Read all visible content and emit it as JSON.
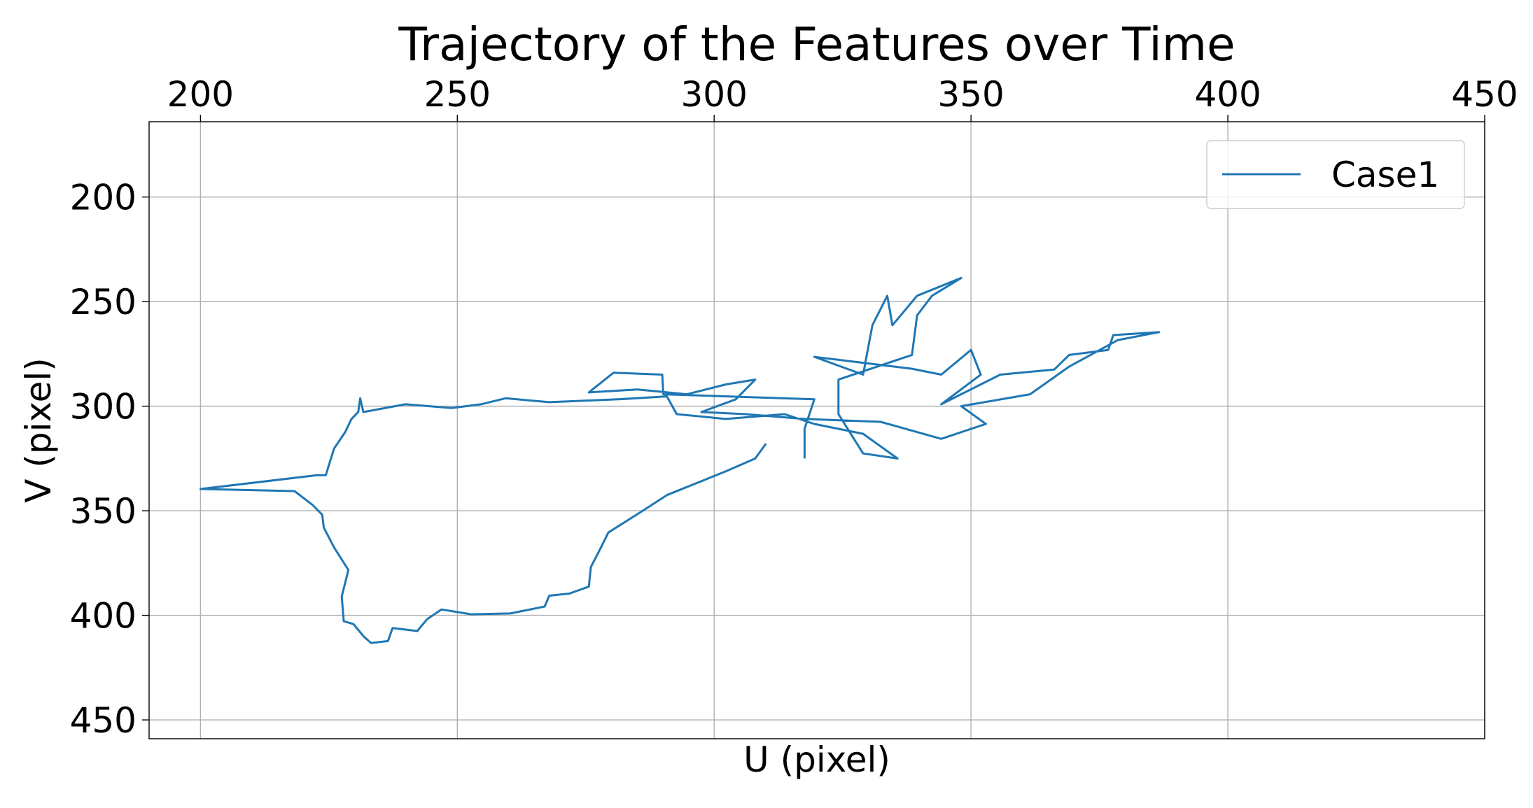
{
  "chart_data": {
    "type": "line",
    "title": "Trajectory of the Features over Time",
    "x_label": "U (pixel)",
    "y_label": "V (pixel)",
    "x_axis_position": "top",
    "y_inverted": true,
    "xlim": [
      190,
      450
    ],
    "ylim": [
      164,
      459
    ],
    "xticks": [
      200,
      250,
      300,
      350,
      400,
      450
    ],
    "yticks": [
      200,
      250,
      300,
      350,
      400,
      450
    ],
    "grid": true,
    "legend": "upper right",
    "series": [
      {
        "name": "Case1",
        "color": "#1f77b4",
        "x": [
          310.1,
          308.0,
          302.3,
          290.8,
          286.1,
          279.4,
          277.5,
          276.0,
          275.6,
          271.8,
          267.9,
          267.0,
          260.3,
          252.7,
          246.9,
          244.1,
          242.2,
          237.4,
          236.5,
          233.2,
          231.7,
          229.8,
          227.9,
          227.5,
          228.8,
          226.0,
          224.0,
          223.7,
          221.8,
          218.3,
          200.0,
          222.7,
          224.4,
          226.0,
          228.2,
          229.4,
          230.7,
          231.1,
          231.7,
          239.9,
          248.9,
          254.6,
          259.4,
          267.9,
          281.3,
          290.8,
          292.7,
          302.3,
          313.7,
          319.5,
          329.0,
          335.7,
          329.0,
          324.2,
          324.2,
          332.8,
          338.5,
          339.5,
          342.4,
          348.1,
          339.5,
          334.7,
          333.7,
          330.8,
          329.0,
          319.5,
          338.5,
          344.2,
          350.0,
          351.9,
          344.2,
          355.7,
          366.2,
          369.1,
          376.7,
          377.7,
          386.6,
          378.6,
          369.1,
          361.5,
          348.1,
          352.9,
          344.2,
          332.4,
          317.6,
          306.1,
          297.5,
          304.2,
          308.0,
          302.3,
          294.7,
          285.1,
          275.6,
          280.4,
          289.9,
          290.1,
          319.5,
          317.6,
          317.6
        ],
        "values": [
          317.9,
          325.0,
          331.1,
          342.5,
          350.0,
          360.4,
          369.8,
          376.9,
          386.3,
          389.6,
          390.6,
          395.8,
          399.1,
          399.5,
          397.2,
          401.9,
          407.5,
          406.1,
          412.3,
          413.2,
          409.9,
          404.2,
          402.8,
          391.0,
          378.3,
          367.5,
          358.0,
          351.9,
          347.2,
          340.6,
          339.6,
          333.0,
          333.0,
          320.3,
          312.3,
          306.1,
          302.8,
          296.2,
          302.8,
          299.1,
          300.9,
          299.1,
          296.2,
          298.1,
          296.7,
          295.3,
          303.8,
          306.1,
          303.8,
          308.5,
          313.2,
          325.0,
          322.6,
          303.8,
          287.3,
          280.2,
          275.5,
          256.6,
          247.2,
          238.7,
          247.2,
          261.3,
          247.2,
          261.3,
          284.9,
          276.4,
          282.1,
          284.9,
          273.1,
          284.9,
          299.1,
          284.9,
          282.5,
          275.5,
          273.1,
          266.0,
          264.6,
          268.4,
          281.1,
          294.3,
          300.0,
          308.5,
          315.6,
          307.5,
          306.1,
          303.8,
          302.8,
          296.7,
          287.3,
          289.6,
          294.3,
          292.0,
          293.4,
          284.0,
          284.9,
          294.3,
          296.7,
          310.8,
          325.0
        ]
      }
    ]
  }
}
